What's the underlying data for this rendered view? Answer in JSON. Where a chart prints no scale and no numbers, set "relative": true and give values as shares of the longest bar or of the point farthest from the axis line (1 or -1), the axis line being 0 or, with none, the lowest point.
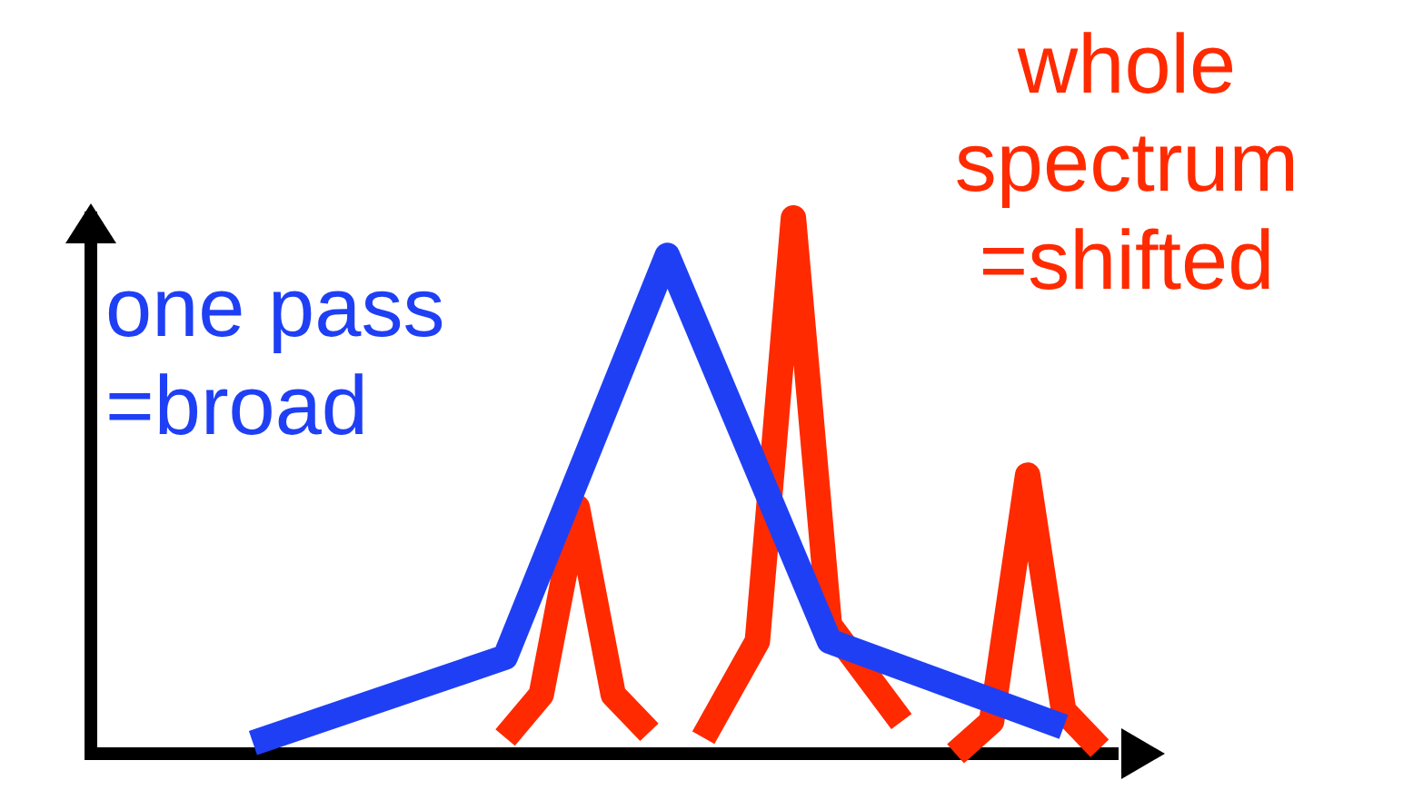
{
  "chart_data": {
    "type": "line",
    "relative": true,
    "categories": [
      null,
      null,
      null,
      null,
      null,
      null,
      null,
      null,
      null,
      null,
      null,
      null,
      null,
      null,
      null,
      null,
      null,
      null,
      null,
      null,
      null,
      null,
      null,
      null,
      null,
      null,
      null,
      null,
      null,
      null,
      null,
      null,
      null,
      null,
      null,
      null,
      null,
      null,
      null,
      null,
      null,
      null,
      null,
      null,
      null,
      null,
      null,
      null,
      null,
      null,
      null,
      null,
      null,
      null,
      null,
      null,
      null,
      null
    ],
    "series": [
      {
        "color": "#1f3ff5",
        "values": [
          null,
          null,
          null,
          null,
          null,
          null,
          null,
          null,
          null,
          0.02,
          null,
          null,
          null,
          null,
          null,
          null,
          null,
          null,
          null,
          null,
          null,
          null,
          null,
          0.18,
          null,
          null,
          null,
          null,
          null,
          null,
          null,
          null,
          0.93,
          null,
          null,
          null,
          null,
          null,
          null,
          null,
          null,
          0.21,
          null,
          null,
          null,
          null,
          null,
          null,
          null,
          null,
          null,
          null,
          null,
          null,
          0.05,
          null,
          null,
          null
        ]
      },
      {
        "color": "#ff2a00",
        "values": [
          null,
          null,
          null,
          null,
          null,
          null,
          null,
          null,
          null,
          null,
          null,
          null,
          null,
          null,
          null,
          null,
          null,
          null,
          null,
          null,
          null,
          null,
          null,
          0.03,
          null,
          0.11,
          null,
          0.46,
          null,
          0.11,
          null,
          0.04,
          null,
          null,
          null,
          null,
          null,
          null,
          null,
          null,
          null,
          null,
          null,
          null,
          null,
          null,
          null,
          null,
          null,
          null,
          null,
          null,
          null,
          null,
          null,
          null,
          null,
          null
        ]
      },
      {
        "color": "#ff2a00",
        "values": [
          null,
          null,
          null,
          null,
          null,
          null,
          null,
          null,
          null,
          null,
          null,
          null,
          null,
          null,
          null,
          null,
          null,
          null,
          null,
          null,
          null,
          null,
          null,
          null,
          null,
          null,
          null,
          null,
          null,
          null,
          null,
          null,
          null,
          null,
          0.03,
          null,
          null,
          0.21,
          null,
          1,
          null,
          0.24,
          null,
          null,
          null,
          0.06,
          null,
          null,
          null,
          null,
          null,
          null,
          null,
          null,
          null,
          null,
          null,
          null
        ]
      },
      {
        "color": "#ff2a00",
        "values": [
          null,
          null,
          null,
          null,
          null,
          null,
          null,
          null,
          null,
          null,
          null,
          null,
          null,
          null,
          null,
          null,
          null,
          null,
          null,
          null,
          null,
          null,
          null,
          null,
          null,
          null,
          null,
          null,
          null,
          null,
          null,
          null,
          null,
          null,
          null,
          null,
          null,
          null,
          null,
          null,
          null,
          null,
          null,
          null,
          null,
          null,
          null,
          null,
          0,
          null,
          0.06,
          null,
          0.52,
          null,
          0.08,
          null,
          0.01,
          null
        ]
      }
    ],
    "annotations": [
      "one pass =broad",
      "whole spectrum =shifted"
    ]
  }
}
